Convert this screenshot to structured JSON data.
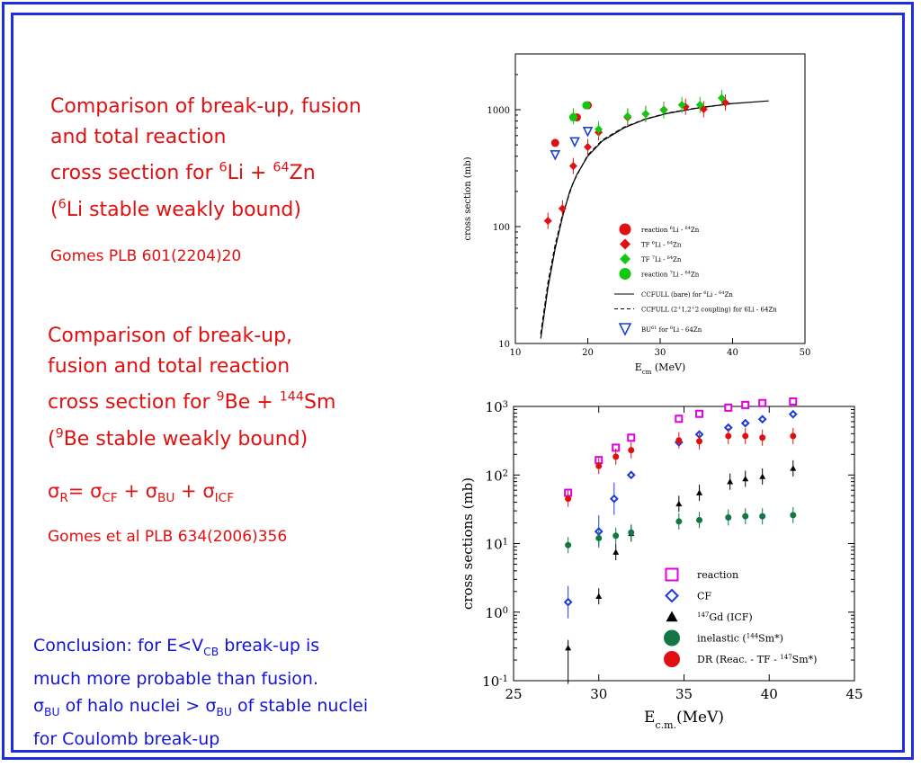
{
  "slide": {
    "block1": {
      "line1": "Comparison of break-up, fusion",
      "line2": "and total reaction",
      "line3_pre": "cross section for ",
      "line3_sup1": "6",
      "line3_mid": "Li + ",
      "line3_sup2": "64",
      "line3_post": "Zn",
      "line4_pre": "(",
      "line4_sup": "6",
      "line4_post": "Li stable weakly bound)",
      "ref": "Gomes PLB 601(2204)20"
    },
    "block2": {
      "line1": "Comparison of break-up,",
      "line2": "fusion and total reaction",
      "line3_pre": "cross section for ",
      "line3_sup1": "9",
      "line3_mid": "Be + ",
      "line3_sup2": "144",
      "line3_post": "Sm",
      "line4_pre": "(",
      "line4_sup": "9",
      "line4_post": "Be stable weakly bound)",
      "formula": {
        "sigma": "σ",
        "sub_r": "R",
        "eq": "= ",
        "sub_cf": "CF",
        "plus": " + ",
        "sub_bu": "BU",
        "sub_icf": "ICF"
      },
      "ref": "Gomes et al PLB 634(2006)356"
    },
    "conclusion": {
      "line1_pre": "Conclusion: for E<V",
      "line1_sub": "CB",
      "line1_post": " break-up is",
      "line2": " much more probable than fusion.",
      "line3_sigma": "σ",
      "line3_sub": "BU",
      "line3_mid": " of halo  nuclei > ",
      "line3_post": " of stable nuclei",
      "line4": "for Coulomb break-up"
    }
  },
  "colors": {
    "frame": "#1c2ee0",
    "title_text": "#e01010",
    "conclusion_text": "#1414d8"
  },
  "chart_data": [
    {
      "type": "scatter",
      "title": "",
      "xlabel_main": "E",
      "xlabel_sub": "cm",
      "xlabel_unit": " (MeV)",
      "ylabel": "cross section (mb)",
      "xlim": [
        10,
        50
      ],
      "ylim": [
        10,
        3000
      ],
      "yscale": "log",
      "xticks": [
        10,
        20,
        30,
        40,
        50
      ],
      "yticks": [
        10,
        100,
        1000
      ],
      "legend_position": "lower-right",
      "series": [
        {
          "name": "reaction 6Li + 64Zn",
          "marker": "circle",
          "color": "#e01010",
          "points": [
            [
              15.5,
              520
            ],
            [
              18.5,
              860
            ],
            [
              20.0,
              1090
            ]
          ]
        },
        {
          "name": "TF 6Li + 64Zn",
          "marker": "diamond",
          "color": "#e01010",
          "points": [
            [
              14.5,
              112
            ],
            [
              16.5,
              143
            ],
            [
              18.0,
              330
            ],
            [
              20.0,
              480
            ],
            [
              21.5,
              640
            ],
            [
              25.5,
              860
            ],
            [
              28.0,
              920
            ],
            [
              30.5,
              1000
            ],
            [
              33.5,
              1060
            ],
            [
              36.0,
              1010
            ],
            [
              39.0,
              1150
            ]
          ]
        },
        {
          "name": "TF 7Li + 64Zn",
          "marker": "diamond",
          "color": "#10c810",
          "points": [
            [
              18.0,
              880
            ],
            [
              21.5,
              680
            ],
            [
              25.5,
              880
            ],
            [
              28.0,
              920
            ],
            [
              30.5,
              990
            ],
            [
              33.0,
              1100
            ],
            [
              35.5,
              1100
            ],
            [
              38.5,
              1260
            ]
          ]
        },
        {
          "name": "reaction 7Li + 64Zn",
          "marker": "circle",
          "color": "#10c810",
          "points": [
            [
              18.0,
              860
            ],
            [
              19.8,
              1090
            ]
          ]
        },
        {
          "name": "BU 6Li + 64Zn",
          "marker": "triangle-down",
          "color": "#1a40d8",
          "points": [
            [
              15.5,
              410
            ],
            [
              18.2,
              530
            ],
            [
              20.0,
              650
            ]
          ]
        }
      ],
      "curves": [
        {
          "name": "CCFULL (bare) for 6Li + 64Zn",
          "style": "solid",
          "points": [
            [
              13.5,
              11
            ],
            [
              14.5,
              30
            ],
            [
              15.5,
              65
            ],
            [
              16.5,
              120
            ],
            [
              17.5,
              200
            ],
            [
              18.5,
              280
            ],
            [
              20,
              400
            ],
            [
              22,
              540
            ],
            [
              25,
              700
            ],
            [
              28,
              830
            ],
            [
              31,
              930
            ],
            [
              35,
              1030
            ],
            [
              40,
              1130
            ],
            [
              45,
              1190
            ]
          ]
        },
        {
          "name": "CCFULL (2+1,2+2 coupling) for 6Li + 64Zn",
          "style": "dashed",
          "points": [
            [
              13.5,
              12
            ],
            [
              14.5,
              33
            ],
            [
              15.5,
              70
            ],
            [
              16.5,
              125
            ],
            [
              18,
              240
            ],
            [
              20,
              410
            ],
            [
              22,
              550
            ],
            [
              25,
              710
            ],
            [
              28,
              835
            ],
            [
              31,
              935
            ],
            [
              35,
              1035
            ],
            [
              40,
              1135
            ]
          ]
        }
      ],
      "legend_labels": [
        {
          "pre": "reaction ",
          "sup1": "6",
          "mid": "Li - ",
          "sup2": "64",
          "post": "Zn"
        },
        {
          "pre": "TF ",
          "sup1": "6",
          "mid": "Li - ",
          "sup2": "64",
          "post": "Zn"
        },
        {
          "pre": "TF ",
          "sup1": "7",
          "mid": "Li - ",
          "sup2": "64",
          "post": "Zn"
        },
        {
          "pre": "reaction ",
          "sup1": "7",
          "mid": "Li - ",
          "sup2": "64",
          "post": "Zn"
        },
        {
          "pre": "CCFULL (bare) for ",
          "sup1": "6",
          "mid": "Li - ",
          "sup2": "64",
          "post": "Zn"
        },
        {
          "pre": "CCFULL (2",
          "sup1": "+",
          "mid": "1,2",
          "sup2": "+",
          "post": "2 coupling) for 6Li - 64Zn"
        },
        {
          "pre": "BU",
          "sup1": "61",
          "mid": " for ",
          "sup2": "6",
          "post": "Li - 64Zn"
        }
      ]
    },
    {
      "type": "scatter",
      "title": "",
      "xlabel_main": "E",
      "xlabel_sub": "c.m.",
      "xlabel_unit": "(MeV)",
      "ylabel": "cross sections (mb)",
      "xlim": [
        25,
        45
      ],
      "ylim": [
        0.1,
        1000
      ],
      "yscale": "log",
      "xticks": [
        25,
        30,
        35,
        40,
        45
      ],
      "yticks": [
        {
          "value": 0.1,
          "base": "10",
          "exp": "-1"
        },
        {
          "value": 1,
          "base": "10",
          "exp": "0"
        },
        {
          "value": 10,
          "base": "10",
          "exp": "1"
        },
        {
          "value": 100,
          "base": "10",
          "exp": "2"
        },
        {
          "value": 1000,
          "base": "10",
          "exp": "3"
        }
      ],
      "legend_position": "lower-right",
      "series": [
        {
          "name": "reaction",
          "marker": "square-open",
          "color": "#e000e0",
          "points": [
            [
              28.2,
              55
            ],
            [
              30.0,
              165
            ],
            [
              31.0,
              250
            ],
            [
              31.9,
              350
            ],
            [
              34.7,
              660
            ],
            [
              35.9,
              780
            ],
            [
              37.6,
              960
            ],
            [
              38.6,
              1050
            ],
            [
              39.6,
              1120
            ],
            [
              41.4,
              1180
            ]
          ]
        },
        {
          "name": "CF",
          "marker": "diamond-open",
          "color": "#1a3ae0",
          "points": [
            [
              28.2,
              1.4
            ],
            [
              30.0,
              15
            ],
            [
              30.9,
              45
            ],
            [
              31.9,
              100
            ],
            [
              34.7,
              300
            ],
            [
              35.9,
              390
            ],
            [
              37.6,
              490
            ],
            [
              38.6,
              570
            ],
            [
              39.6,
              650
            ],
            [
              41.4,
              770
            ]
          ]
        },
        {
          "name": "147Gd (ICF)",
          "marker": "triangle",
          "color": "#000000",
          "points": [
            [
              28.2,
              0.3
            ],
            [
              30.0,
              1.7
            ],
            [
              31.0,
              7.5
            ],
            [
              31.9,
              14
            ],
            [
              34.7,
              38
            ],
            [
              35.9,
              55
            ],
            [
              37.7,
              80
            ],
            [
              38.6,
              88
            ],
            [
              39.6,
              95
            ],
            [
              41.4,
              125
            ]
          ]
        },
        {
          "name": "inelastic (144Sm*)",
          "marker": "circle",
          "color": "#117744",
          "points": [
            [
              28.2,
              9.5
            ],
            [
              30.0,
              12
            ],
            [
              31.0,
              13
            ],
            [
              31.9,
              14.5
            ],
            [
              34.7,
              21
            ],
            [
              35.9,
              22
            ],
            [
              37.6,
              24
            ],
            [
              38.6,
              25
            ],
            [
              39.6,
              25
            ],
            [
              41.4,
              26
            ]
          ]
        },
        {
          "name": "DR (Reac. - TF - 147Sm*)",
          "marker": "circle",
          "color": "#e01010",
          "points": [
            [
              28.2,
              45
            ],
            [
              30.0,
              135
            ],
            [
              31.0,
              185
            ],
            [
              31.9,
              230
            ],
            [
              34.7,
              320
            ],
            [
              35.9,
              310
            ],
            [
              37.6,
              370
            ],
            [
              38.6,
              370
            ],
            [
              39.6,
              350
            ],
            [
              41.4,
              370
            ]
          ]
        }
      ],
      "legend_labels": [
        {
          "pre": "reaction",
          "sup": "",
          "post": ""
        },
        {
          "pre": "CF",
          "sup": "",
          "post": ""
        },
        {
          "pre": "",
          "sup": "147",
          "post": "Gd (ICF)"
        },
        {
          "pre": "inelastic (",
          "sup": "144",
          "post": "Sm*)"
        },
        {
          "pre": "DR (Reac. - TF - ",
          "sup": "147",
          "post": "Sm*)"
        }
      ]
    }
  ]
}
